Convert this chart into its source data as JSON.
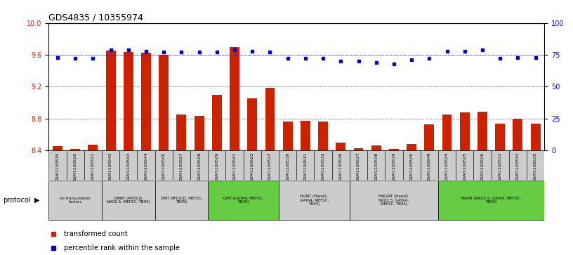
{
  "title": "GDS4835 / 10355974",
  "samples": [
    "GSM1100519",
    "GSM1100520",
    "GSM1100521",
    "GSM1100542",
    "GSM1100543",
    "GSM1100544",
    "GSM1100545",
    "GSM1100527",
    "GSM1100528",
    "GSM1100529",
    "GSM1100541",
    "GSM1100522",
    "GSM1100523",
    "GSM1100530",
    "GSM1100531",
    "GSM1100532",
    "GSM1100536",
    "GSM1100537",
    "GSM1100538",
    "GSM1100539",
    "GSM1100540",
    "GSM1102649",
    "GSM1100524",
    "GSM1100525",
    "GSM1100526",
    "GSM1100533",
    "GSM1100534",
    "GSM1100535"
  ],
  "bar_values": [
    8.45,
    8.42,
    8.47,
    9.65,
    9.64,
    9.63,
    9.6,
    8.85,
    8.83,
    9.1,
    9.7,
    9.05,
    9.19,
    8.76,
    8.77,
    8.76,
    8.5,
    8.43,
    8.46,
    8.42,
    8.48,
    8.73,
    8.85,
    8.88,
    8.89,
    8.74,
    8.8,
    8.74
  ],
  "percentile_values": [
    73,
    72,
    72,
    79,
    79,
    78,
    77,
    77,
    77,
    77,
    79,
    78,
    77,
    72,
    72,
    72,
    70,
    70,
    69,
    68,
    71,
    72,
    78,
    78,
    79,
    72,
    73,
    73
  ],
  "ylim_left": [
    8.4,
    10.0
  ],
  "ylim_right": [
    0,
    100
  ],
  "yticks_left": [
    8.4,
    8.8,
    9.2,
    9.6,
    10.0
  ],
  "yticks_right": [
    0,
    25,
    50,
    75,
    100
  ],
  "bar_color": "#cc2200",
  "dot_color": "#0000cc",
  "title_fontsize": 9,
  "groups": [
    {
      "label": "no transcription\nfactors",
      "start": 0,
      "end": 3,
      "color": "#cccccc"
    },
    {
      "label": "DMNT (MYOCD,\nNKX2.5, MEF2C, TBX5)",
      "start": 3,
      "end": 6,
      "color": "#cccccc"
    },
    {
      "label": "DMT (MYOCD, MEF2C,\nTBX5)",
      "start": 6,
      "end": 9,
      "color": "#cccccc"
    },
    {
      "label": "GMT (GATA4, MEF2C,\nTBX5)",
      "start": 9,
      "end": 13,
      "color": "#66cc44"
    },
    {
      "label": "HGMT (Hand2,\nGATA4, MEF2C,\nTBX5)",
      "start": 13,
      "end": 17,
      "color": "#cccccc"
    },
    {
      "label": "HNGMT (Hand2,\nNKX2.5, GATA4,\nMEF2C, TBX5)",
      "start": 17,
      "end": 22,
      "color": "#cccccc"
    },
    {
      "label": "NGMT (NKX2.5, GATA4, MEF2C,\nTBX5)",
      "start": 22,
      "end": 28,
      "color": "#66cc44"
    }
  ]
}
